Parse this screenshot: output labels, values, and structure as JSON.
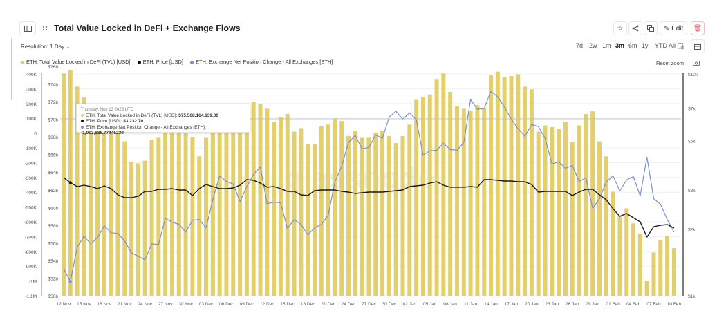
{
  "header": {
    "title": "Total Value Locked in DeFi + Exchange Flows",
    "resolution": "Resolution: 1 Day",
    "edit_label": "Edit",
    "reset_zoom": "Reset zoom"
  },
  "ranges": [
    "7d",
    "2w",
    "1m",
    "3m",
    "6m",
    "1y",
    "YTD",
    "All"
  ],
  "active_range": "3m",
  "legend": [
    {
      "label": "ETH: Total Value Locked in DeFi (TVL) [USD]",
      "color": "#e3d06c"
    },
    {
      "label": "ETH: Price [USD]",
      "color": "#111111"
    },
    {
      "label": "ETH: Exchange Net Position Change - All Exchanges [ETH]",
      "color": "#7c8fd6"
    }
  ],
  "tooltip": {
    "date": "Thursday, Nov 13 2025 UTC",
    "tvl_label": "ETH: Total Value Locked in DeFi (TVL) [USD]:",
    "tvl_value": "$75,568,164,139.00",
    "price_label": "ETH: Price [USD]:",
    "price_value": "$3,232.70",
    "flow_label": "ETH: Exchange Net Position Change - All Exchanges [ETH]:",
    "flow_value": "-1,003,888.77445239"
  },
  "watermark": "glassnode",
  "chart_data": {
    "type": "bar+line",
    "title": "Total Value Locked in DeFi + Exchange Flows",
    "x_start": "2025-11-12",
    "x_end": "2026-02-10",
    "x_tick_labels": [
      "12 Nov",
      "15 Nov",
      "18 Nov",
      "21 Nov",
      "24 Nov",
      "27 Nov",
      "30 Nov",
      "03 Dec",
      "06 Dec",
      "09 Dec",
      "12 Dec",
      "15 Dec",
      "18 Dec",
      "21 Dec",
      "24 Dec",
      "27 Dec",
      "30 Dec",
      "02 Jan",
      "05 Jan",
      "08 Jan",
      "11 Jan",
      "14 Jan",
      "17 Jan",
      "20 Jan",
      "23 Jan",
      "26 Jan",
      "29 Jan",
      "01 Feb",
      "04 Feb",
      "07 Feb",
      "10 Feb"
    ],
    "flow_axis": {
      "ticks": [
        "400K",
        "300K",
        "200K",
        "100K",
        "0",
        "-100K",
        "-200K",
        "-300K",
        "-400K",
        "-500K",
        "-600K",
        "-700K",
        "-800K",
        "-900K",
        "-1M",
        "-1.1M"
      ],
      "range_k": [
        -1100,
        400
      ]
    },
    "tvl_axis": {
      "ticks": [
        "$76b",
        "$74b",
        "$72b",
        "$70b",
        "$68b",
        "$66b",
        "$64b",
        "$62b",
        "$60b",
        "$58b",
        "$56b",
        "$54b",
        "$52b",
        "$50b"
      ],
      "range_b": [
        50,
        76
      ]
    },
    "price_axis": {
      "scale": "log",
      "ticks": [
        {
          "label": "$10k",
          "v": 10000
        },
        {
          "label": "$7k",
          "v": 7000
        },
        {
          "label": "$5k",
          "v": 5000
        },
        {
          "label": "$3k",
          "v": 3000
        },
        {
          "label": "$2k",
          "v": 2000
        },
        {
          "label": "$1k",
          "v": 1000
        }
      ],
      "range": [
        1000,
        10000
      ]
    },
    "tvl_b": [
      75.2,
      75.57,
      73.7,
      72.5,
      71.5,
      70.5,
      69.4,
      70.0,
      70.0,
      67.5,
      65.2,
      65.0,
      65.3,
      67.7,
      67.9,
      69.1,
      69.0,
      69.4,
      68.4,
      68.0,
      65.8,
      67.9,
      70.1,
      70.0,
      69.5,
      69.0,
      69.3,
      69.4,
      72.0,
      71.7,
      71.2,
      69.7,
      70.2,
      70.6,
      68.6,
      69.0,
      67.2,
      67.2,
      69.2,
      69.4,
      70.1,
      69.8,
      68.1,
      68.7,
      67.9,
      67.9,
      68.5,
      68.7,
      68.1,
      67.3,
      68.1,
      69.4,
      72.2,
      72.5,
      72.8,
      74.5,
      75.2,
      73.1,
      71.5,
      71.2,
      71.0,
      71.6,
      71.3,
      75.0,
      75.4,
      74.8,
      74.9,
      75.1,
      73.7,
      73.4,
      68.6,
      69.3,
      69.1,
      68.9,
      69.7,
      67.4,
      69.3,
      70.6,
      70.9,
      67.5,
      65.8,
      61.8,
      59.1,
      59.9,
      58.2,
      57.0,
      51.7,
      54.9,
      56.3,
      56.8,
      55.4
    ],
    "price_usd": [
      3411,
      3232.7,
      3106,
      3151,
      3106,
      3040,
      3129,
      3040,
      2850,
      2770,
      2770,
      2810,
      2954,
      2954,
      3019,
      3019,
      3040,
      2997,
      2997,
      2830,
      3040,
      3174,
      3106,
      3040,
      3040,
      3062,
      3151,
      3338,
      3314,
      3220,
      3085,
      3106,
      3040,
      2954,
      2954,
      2850,
      2830,
      2975,
      2997,
      2997,
      2997,
      2954,
      2933,
      2891,
      2912,
      2933,
      2933,
      2933,
      2954,
      2975,
      2997,
      3106,
      3129,
      3151,
      3220,
      3266,
      3151,
      3085,
      3085,
      3085,
      3106,
      3085,
      3338,
      3338,
      3314,
      3290,
      3290,
      3266,
      3266,
      3174,
      2933,
      2954,
      2954,
      2954,
      2954,
      2830,
      2933,
      3019,
      3019,
      2850,
      2710,
      2469,
      2282,
      2348,
      2249,
      2154,
      1840,
      2048,
      2078,
      2093,
      2020
    ],
    "net_flow_k": [
      -917,
      -1004,
      -772,
      -697,
      -749,
      -706,
      -627,
      -674,
      -678,
      -730,
      -810,
      -833,
      -856,
      -749,
      -753,
      -575,
      -603,
      -617,
      -669,
      -589,
      -585,
      -641,
      -450,
      -289,
      -327,
      -345,
      -463,
      -364,
      -280,
      -228,
      -477,
      -467,
      -472,
      -645,
      -585,
      -617,
      -688,
      -641,
      -617,
      -556,
      -331,
      -224,
      -64,
      -17,
      -106,
      -97,
      -13,
      -36,
      109,
      147,
      95,
      137,
      91,
      -149,
      -120,
      -116,
      -69,
      -111,
      -116,
      -64,
      227,
      161,
      166,
      283,
      245,
      175,
      95,
      30,
      -22,
      58,
      44,
      -36,
      -209,
      -195,
      -238,
      -219,
      -327,
      -303,
      -509,
      -444,
      -331,
      -289,
      -392,
      -317,
      -294,
      -425,
      -163,
      -444,
      -481,
      -585,
      -669
    ]
  }
}
